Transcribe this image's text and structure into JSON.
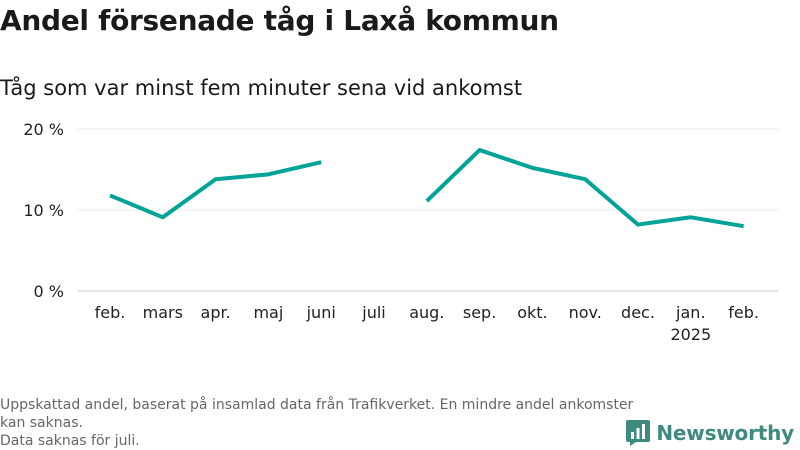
{
  "title": "Andel försenade tåg i Laxå kommun",
  "subtitle": "Tåg som var minst fem minuter sena vid ankomst",
  "footnote": {
    "line1": "Uppskattad andel, baserat på insamlad data från Trafikverket. En mindre andel ankomster kan saknas.",
    "line2": "Data saknas för juli."
  },
  "brand": {
    "name": "Newsworthy",
    "icon": "newsworthy-logo-icon",
    "color": "#3f8a7e"
  },
  "chart_data": {
    "type": "line",
    "categories": [
      "feb.",
      "mars",
      "apr.",
      "maj",
      "juni",
      "juli",
      "aug.",
      "sep.",
      "okt.",
      "nov.",
      "dec.",
      "jan.",
      "feb."
    ],
    "year_labels": [
      "",
      "",
      "",
      "",
      "",
      "",
      "",
      "",
      "",
      "",
      "",
      "2025",
      ""
    ],
    "series": [
      {
        "values": [
          11.8,
          9.1,
          13.8,
          14.4,
          15.9,
          null,
          11.1,
          17.4,
          15.2,
          13.8,
          8.2,
          9.1,
          8.0
        ]
      }
    ],
    "yticks": [
      0,
      10,
      20
    ],
    "ytick_labels": [
      "0 %",
      "10 %",
      "20 %"
    ],
    "ylim": [
      0,
      20
    ],
    "grid": true,
    "line_color": "#00a397",
    "xlabel": "",
    "ylabel": ""
  }
}
